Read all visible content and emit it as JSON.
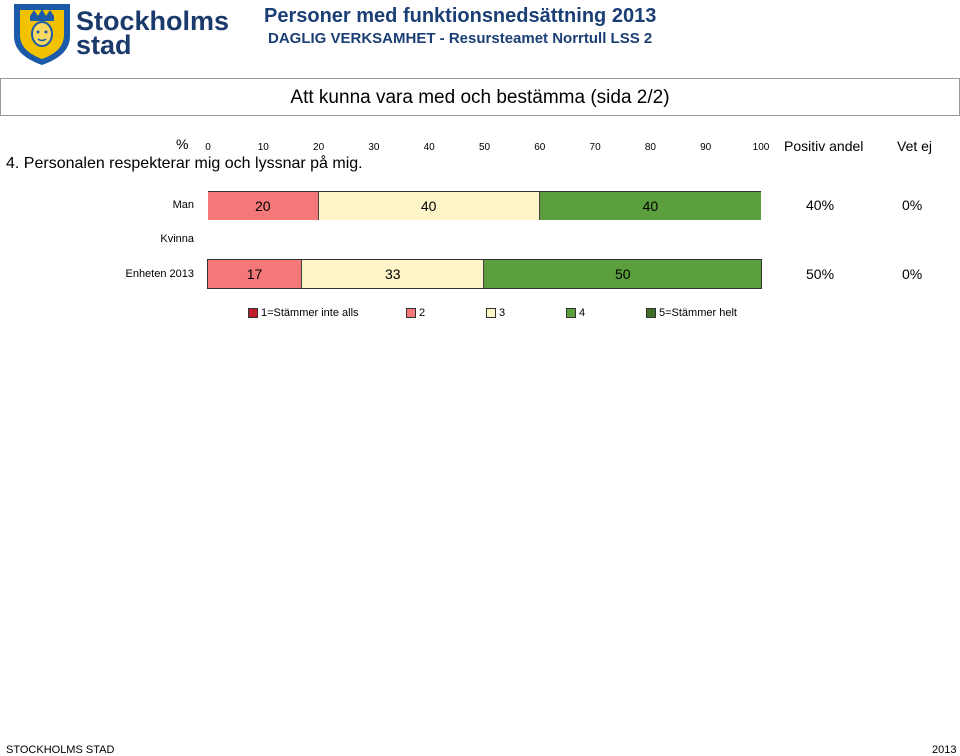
{
  "header": {
    "logo_line1": "Stockholms",
    "logo_line2": "stad",
    "title": "Personer med funktionsnedsättning 2013",
    "subtitle": "DAGLIG VERKSAMHET - Resursteamet Norrtull LSS 2"
  },
  "section_title": "Att kunna vara med och bestämma (sida 2/2)",
  "percent_label": "%",
  "question": "4. Personalen respekterar mig och lyssnar på mig.",
  "columns": {
    "positive": "Positiv andel",
    "dont_know": "Vet ej"
  },
  "colors": {
    "c1": "#c0202b",
    "c2": "#f47878",
    "c3": "#fdf5c8",
    "c4": "#5b9e3c",
    "c5": "#3e6e24"
  },
  "legend": [
    "1=Stämmer inte alls",
    "2",
    "3",
    "4",
    "5=Stämmer helt"
  ],
  "chart_data": {
    "type": "bar",
    "orientation": "horizontal",
    "stacked": true,
    "xlim": [
      0,
      100
    ],
    "x_ticks": [
      "0",
      "10",
      "20",
      "30",
      "40",
      "50",
      "60",
      "70",
      "80",
      "90",
      "100"
    ],
    "categories": [
      "Man",
      "Kvinna",
      "Enheten 2013"
    ],
    "series": [
      {
        "name": "1=Stämmer inte alls",
        "values": [
          0,
          null,
          0
        ]
      },
      {
        "name": "2",
        "values": [
          20,
          null,
          17
        ]
      },
      {
        "name": "3",
        "values": [
          40,
          null,
          33
        ]
      },
      {
        "name": "4",
        "values": [
          40,
          null,
          50
        ]
      },
      {
        "name": "5=Stämmer helt",
        "values": [
          0,
          null,
          0
        ]
      }
    ],
    "positive_share": [
      "40%",
      "",
      "50%"
    ],
    "dont_know": [
      "0%",
      "",
      "0%"
    ]
  },
  "footer": {
    "left": "STOCKHOLMS STAD",
    "right": "2013"
  }
}
